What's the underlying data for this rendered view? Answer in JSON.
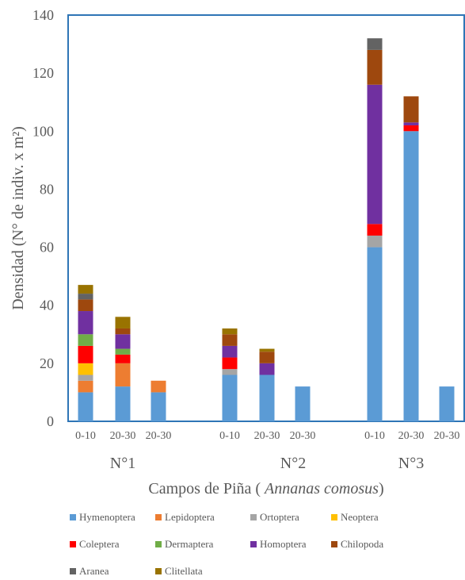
{
  "chart_data": {
    "type": "bar",
    "stacked": true,
    "title": "",
    "ylabel": "Densidad (N° de indiv. x m²)",
    "xlabel": {
      "prefix": "Campos  de Piña ( ",
      "italic": "Annanas comosus",
      "suffix": ")"
    },
    "ylim": [
      0,
      140
    ],
    "yticks": [
      0,
      20,
      40,
      60,
      80,
      100,
      120,
      140
    ],
    "grid": false,
    "legend_position": "bottom",
    "groups": [
      {
        "label": "N°1",
        "categories": [
          "0-10",
          "20-30",
          "20-30"
        ]
      },
      {
        "label": "N°2",
        "categories": [
          "0-10",
          "20-30",
          "20-30"
        ]
      },
      {
        "label": "N°3",
        "categories": [
          "0-10",
          "20-30",
          "20-30"
        ]
      }
    ],
    "series": [
      {
        "name": "Hymenoptera",
        "color": "#5B9BD5",
        "values": [
          10,
          12,
          10,
          16,
          16,
          12,
          60,
          100,
          12
        ]
      },
      {
        "name": "Lepidoptera",
        "color": "#ED7D31",
        "values": [
          4,
          8,
          4,
          0,
          0,
          0,
          0,
          0,
          0
        ]
      },
      {
        "name": "Ortoptera",
        "color": "#A5A5A5",
        "values": [
          2,
          0,
          0,
          2,
          0,
          0,
          4,
          0,
          0
        ]
      },
      {
        "name": "Neoptera",
        "color": "#FFC000",
        "values": [
          4,
          0,
          0,
          0,
          0,
          0,
          0,
          0,
          0
        ]
      },
      {
        "name": "Coleptera",
        "color": "#FF0000",
        "values": [
          6,
          3,
          0,
          4,
          0,
          0,
          4,
          2,
          0
        ]
      },
      {
        "name": "Dermaptera",
        "color": "#70AD47",
        "values": [
          4,
          2,
          0,
          0,
          0,
          0,
          0,
          0,
          0
        ]
      },
      {
        "name": "Homoptera",
        "color": "#7030A0",
        "values": [
          8,
          5,
          0,
          4,
          4,
          0,
          48,
          1,
          0
        ]
      },
      {
        "name": "Chilopoda",
        "color": "#9E480E",
        "values": [
          4,
          2,
          0,
          4,
          4,
          0,
          12,
          9,
          0
        ]
      },
      {
        "name": "Aranea",
        "color": "#636363",
        "values": [
          2,
          0,
          0,
          0,
          0,
          0,
          4,
          0,
          0
        ]
      },
      {
        "name": "Clitellata",
        "color": "#997300",
        "values": [
          3,
          4,
          0,
          2,
          1,
          0,
          0,
          0,
          0
        ]
      }
    ]
  }
}
